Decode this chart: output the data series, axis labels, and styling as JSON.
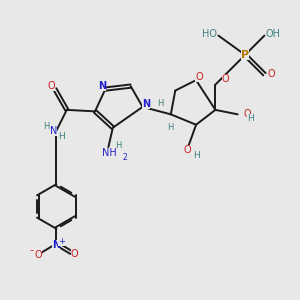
{
  "bg_color": "#e8e8e8",
  "bond_color": "#1a1a1a",
  "bond_width": 1.4,
  "colors": {
    "N": "#2020cc",
    "O": "#cc2020",
    "P": "#b87800",
    "C": "#1a1a1a",
    "H": "#408080"
  },
  "xlim": [
    0,
    10
  ],
  "ylim": [
    0,
    10
  ]
}
